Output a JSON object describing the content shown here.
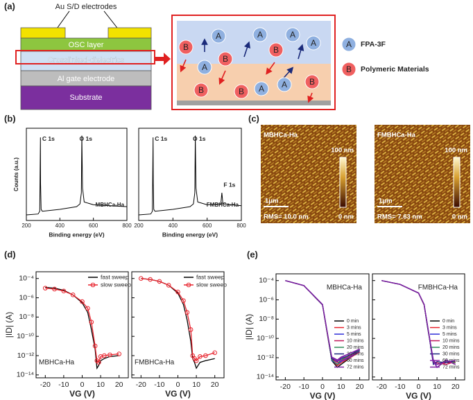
{
  "panels": {
    "a": {
      "label": "(a)",
      "electrodes": "Au S/D electrodes",
      "layers": [
        "OSC layer",
        "Crosslinked-dielectrics",
        "Al gate electrode",
        "Substrate"
      ],
      "legend": [
        {
          "symbol": "A",
          "text": "FPA-3F"
        },
        {
          "symbol": "B",
          "text": "Polymeric Materials"
        }
      ]
    },
    "b": {
      "label": "(b)"
    },
    "c": {
      "label": "(c)",
      "images": [
        {
          "sample": "MBHCa-Ha",
          "scale_max": "100 nm",
          "scale_min": "0 nm",
          "scale_bar": "1μm",
          "rms": "RMS= 10.0 nm"
        },
        {
          "sample": "FMBHCa-Ha",
          "scale_max": "100 nm",
          "scale_min": "0 nm",
          "scale_bar": "1μm",
          "rms": "RMS= 7.63 nm"
        }
      ]
    },
    "d": {
      "label": "(d)"
    },
    "e": {
      "label": "(e)"
    }
  },
  "chart_data": [
    {
      "type": "line",
      "sample": "MBHCa-Ha",
      "ylabel": "Counts (a.u.)",
      "xlabel": "Binding energy (eV)",
      "annotations": [
        "C 1s",
        "O 1s"
      ],
      "xlim": [
        200,
        800
      ],
      "xticks": [
        200,
        400,
        600,
        800
      ],
      "ylim": [
        0,
        100
      ],
      "x": [
        200,
        270,
        280,
        284,
        285,
        288,
        295,
        400,
        500,
        520,
        528,
        531,
        535,
        545,
        600,
        700,
        800
      ],
      "series": [
        {
          "color": "#000000",
          "values": [
            6,
            7,
            10,
            90,
            40,
            12,
            10,
            12,
            15,
            18,
            30,
            92,
            35,
            20,
            17,
            16,
            15
          ]
        }
      ]
    },
    {
      "type": "line",
      "sample": "FMBHCa-Ha",
      "xlabel": "Binding energy (eV)",
      "annotations": [
        "C 1s",
        "O 1s",
        "F 1s"
      ],
      "xlim": [
        200,
        800
      ],
      "xticks": [
        200,
        400,
        600,
        800
      ],
      "ylim": [
        0,
        100
      ],
      "x": [
        200,
        270,
        280,
        284,
        285,
        288,
        295,
        400,
        500,
        520,
        528,
        531,
        535,
        545,
        600,
        680,
        686,
        692,
        800
      ],
      "series": [
        {
          "color": "#000000",
          "values": [
            6,
            7,
            10,
            90,
            40,
            12,
            10,
            12,
            15,
            18,
            30,
            92,
            35,
            20,
            17,
            18,
            30,
            18,
            16
          ]
        }
      ]
    },
    {
      "type": "line",
      "log_y": true,
      "sample": "MBHCa-Ha",
      "ylabel": "|ID| (A)",
      "xlabel": "VG (V)",
      "xlim": [
        -25,
        25
      ],
      "xticks": [
        -20,
        -10,
        0,
        10,
        20
      ],
      "ylim": [
        5e-15,
        0.0005
      ],
      "yticks": [
        {
          "value": 0.0001,
          "label": "10⁻⁴"
        },
        {
          "value": 1e-06,
          "label": "10⁻⁶"
        },
        {
          "value": 1e-08,
          "label": "10⁻⁸"
        },
        {
          "value": 1e-10,
          "label": "10⁻¹⁰"
        },
        {
          "value": 1e-12,
          "label": "10⁻¹²"
        },
        {
          "value": 1e-14,
          "label": "10⁻¹⁴"
        }
      ],
      "x": [
        -20,
        -15,
        -10,
        -5,
        0,
        3,
        5,
        7,
        8,
        9,
        10,
        12,
        15,
        20
      ],
      "series": [
        {
          "name": "fast sweep",
          "color": "#000000",
          "values": [
            1.2e-05,
            1e-05,
            6e-06,
            2e-06,
            3e-07,
            3e-08,
            5e-10,
            5e-12,
            5e-14,
            1e-13,
            3e-13,
            5e-13,
            8e-13,
            1e-12
          ]
        },
        {
          "name": "slow sweep",
          "color": "#e8222c",
          "marker": "circle",
          "values": [
            1e-05,
            8e-06,
            5e-06,
            2e-06,
            4e-07,
            8e-08,
            3e-09,
            1e-11,
            3e-13,
            2e-13,
            8e-13,
            1e-12,
            1.2e-12,
            1.5e-12
          ]
        }
      ]
    },
    {
      "type": "line",
      "log_y": true,
      "sample": "FMBHCa-Ha",
      "xlabel": "VG (V)",
      "xlim": [
        -25,
        25
      ],
      "xticks": [
        -20,
        -10,
        0,
        10,
        20
      ],
      "ylim": [
        5e-15,
        0.0005
      ],
      "x": [
        -20,
        -15,
        -10,
        -5,
        0,
        3,
        5,
        7,
        8,
        9,
        10,
        12,
        15,
        20
      ],
      "series": [
        {
          "name": "fast sweep",
          "color": "#000000",
          "values": [
            0.0001,
            8e-05,
            5e-05,
            2e-05,
            3e-06,
            2e-07,
            5e-09,
            3e-11,
            5e-13,
            2e-13,
            5e-14,
            2e-13,
            3e-13,
            5e-13
          ]
        },
        {
          "name": "slow sweep",
          "color": "#e8222c",
          "marker": "circle",
          "values": [
            0.0001,
            8e-05,
            5e-05,
            2e-05,
            4e-06,
            5e-07,
            3e-08,
            5e-10,
            1e-12,
            5e-13,
            3e-13,
            8e-13,
            1e-12,
            2e-12
          ]
        }
      ]
    },
    {
      "type": "line",
      "log_y": true,
      "sample": "MBHCa-Ha",
      "ylabel": "|ID| (A)",
      "xlabel": "VG (V)",
      "xlim": [
        -25,
        25
      ],
      "xticks": [
        -20,
        -10,
        0,
        10,
        20
      ],
      "ylim": [
        5e-15,
        0.0005
      ],
      "yticks": [
        {
          "value": 0.0001,
          "label": "10⁻⁴"
        },
        {
          "value": 1e-06,
          "label": "10⁻⁶"
        },
        {
          "value": 1e-08,
          "label": "10⁻⁸"
        },
        {
          "value": 1e-10,
          "label": "10⁻¹⁰"
        },
        {
          "value": 1e-12,
          "label": "10⁻¹²"
        },
        {
          "value": 1e-14,
          "label": "10⁻¹⁴"
        }
      ],
      "x": [
        -20,
        -10,
        0,
        3,
        5,
        8,
        10,
        15,
        20
      ],
      "series": [
        {
          "name": "0 min",
          "color": "#000000",
          "values": [
            0.0001,
            3e-05,
            3e-07,
            1e-10,
            5e-13,
            1e-13,
            2e-13,
            1e-12,
            5e-12
          ]
        },
        {
          "name": "3 mins",
          "color": "#e8222c",
          "values": [
            0.0001,
            3e-05,
            3e-07,
            1.2e-10,
            6e-13,
            1.5e-13,
            3e-13,
            1e-12,
            4e-12
          ]
        },
        {
          "name": "5 mins",
          "color": "#2a2ad8",
          "values": [
            0.0001,
            3e-05,
            3.2e-07,
            1.3e-10,
            5e-13,
            2e-13,
            4e-13,
            1.2e-12,
            5e-12
          ]
        },
        {
          "name": "10 mins",
          "color": "#c2185b",
          "values": [
            0.0001,
            3e-05,
            3e-07,
            1.1e-10,
            7e-13,
            3e-13,
            5e-13,
            1.5e-12,
            6e-12
          ]
        },
        {
          "name": "20 mins",
          "color": "#2e8b57",
          "values": [
            0.0001,
            3e-05,
            3.1e-07,
            1.2e-10,
            6e-13,
            2e-13,
            6e-13,
            2e-12,
            6e-12
          ]
        },
        {
          "name": "30 mins",
          "color": "#1a237e",
          "values": [
            0.0001,
            3e-05,
            3e-07,
            1.4e-10,
            8e-13,
            4e-13,
            8e-13,
            2e-12,
            7e-12
          ]
        },
        {
          "name": "60 mins",
          "color": "#8e24aa",
          "values": [
            0.0001,
            3e-05,
            3.3e-07,
            1.5e-10,
            1e-12,
            5e-13,
            1e-12,
            3e-12,
            7e-12
          ]
        },
        {
          "name": "72 mins",
          "color": "#7b1fa2",
          "values": [
            0.0001,
            3e-05,
            3.4e-07,
            1.6e-10,
            1.2e-12,
            6e-13,
            1.2e-12,
            3e-12,
            8e-12
          ]
        }
      ]
    },
    {
      "type": "line",
      "log_y": true,
      "sample": "FMBHCa-Ha",
      "xlabel": "VG (V)",
      "xlim": [
        -25,
        25
      ],
      "xticks": [
        -20,
        -10,
        0,
        10,
        20
      ],
      "ylim": [
        5e-15,
        0.0005
      ],
      "x": [
        -20,
        -10,
        0,
        3,
        5,
        8,
        10,
        15,
        20
      ],
      "series": [
        {
          "name": "0 min",
          "color": "#000000",
          "values": [
            0.0001,
            4e-05,
            5e-06,
            3e-07,
            1e-09,
            5e-13,
            1e-13,
            5e-13,
            2e-13
          ]
        },
        {
          "name": "3 mins",
          "color": "#e8222c",
          "values": [
            0.0001,
            4e-05,
            5e-06,
            3e-07,
            1.2e-09,
            4e-13,
            2e-13,
            3e-13,
            3e-13
          ]
        },
        {
          "name": "5 mins",
          "color": "#2a2ad8",
          "values": [
            0.0001,
            4e-05,
            5e-06,
            3.2e-07,
            1.1e-09,
            6e-13,
            1e-13,
            6e-13,
            2e-13
          ]
        },
        {
          "name": "10 mins",
          "color": "#c2185b",
          "values": [
            0.0001,
            4e-05,
            5e-06,
            3e-07,
            1.3e-09,
            3e-13,
            3e-13,
            2e-13,
            4e-13
          ]
        },
        {
          "name": "20 mins",
          "color": "#2e8b57",
          "values": [
            0.0001,
            4e-05,
            5.1e-06,
            3.1e-07,
            1.2e-09,
            5e-13,
            2e-13,
            5e-13,
            3e-13
          ]
        },
        {
          "name": "30 mins",
          "color": "#1a237e",
          "values": [
            0.0001,
            4e-05,
            5e-06,
            3.3e-07,
            1.4e-09,
            2e-13,
            4e-13,
            3e-13,
            5e-13
          ]
        },
        {
          "name": "60 mins",
          "color": "#8e24aa",
          "values": [
            0.0001,
            4e-05,
            5.2e-06,
            3.4e-07,
            1.5e-09,
            4e-13,
            1e-13,
            6e-13,
            2e-13
          ]
        },
        {
          "name": "72 mins",
          "color": "#7b1fa2",
          "values": [
            0.0001,
            4e-05,
            5.3e-06,
            3.5e-07,
            1.6e-09,
            6e-13,
            2e-13,
            4e-13,
            5e-13
          ]
        }
      ]
    }
  ]
}
